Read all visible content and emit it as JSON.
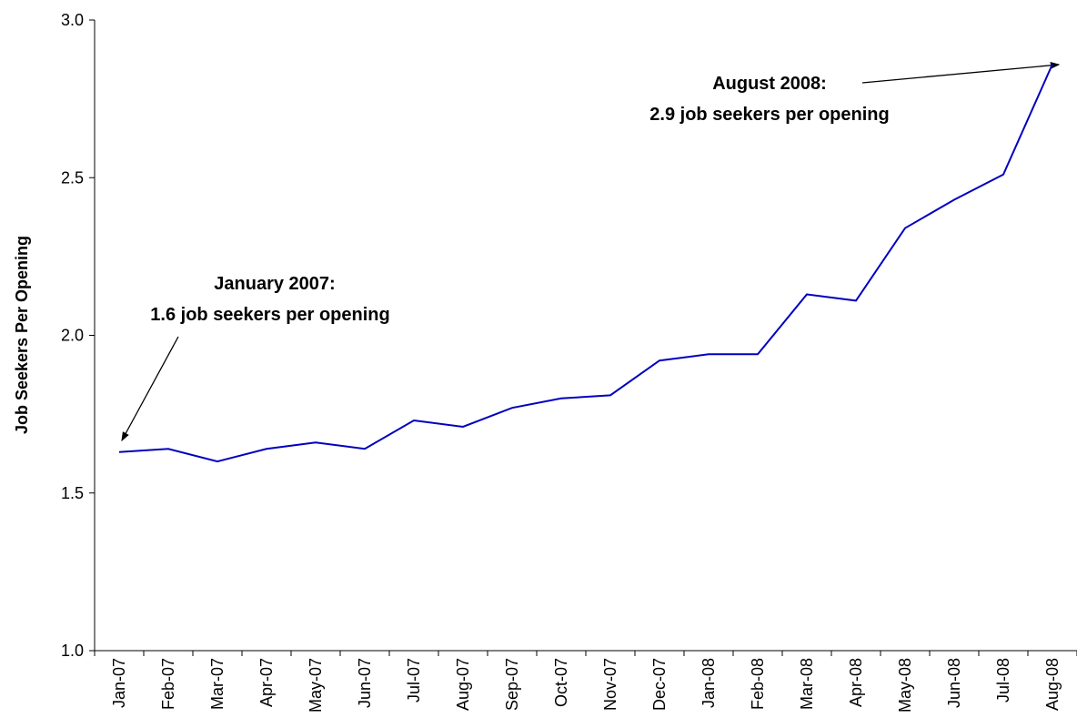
{
  "chart_data": {
    "type": "line",
    "y_label": "Job Seekers Per Opening",
    "categories": [
      "Jan-07",
      "Feb-07",
      "Mar-07",
      "Apr-07",
      "May-07",
      "Jun-07",
      "Jul-07",
      "Aug-07",
      "Sep-07",
      "Oct-07",
      "Nov-07",
      "Dec-07",
      "Jan-08",
      "Feb-08",
      "Mar-08",
      "Apr-08",
      "May-08",
      "Jun-08",
      "Jul-08",
      "Aug-08"
    ],
    "series": [
      {
        "name": "Job seekers per opening",
        "color": "#0000c0",
        "values": [
          1.63,
          1.64,
          1.6,
          1.64,
          1.66,
          1.64,
          1.73,
          1.71,
          1.77,
          1.8,
          1.81,
          1.92,
          1.94,
          1.94,
          2.13,
          2.11,
          2.34,
          2.43,
          2.51,
          2.86
        ]
      }
    ],
    "ylim": [
      1.0,
      3.0
    ],
    "yticks": [
      {
        "value": 1.0,
        "label": "1.0"
      },
      {
        "value": 1.5,
        "label": "1.5"
      },
      {
        "value": 2.0,
        "label": "2.0"
      },
      {
        "value": 2.5,
        "label": "2.5"
      },
      {
        "value": 3.0,
        "label": "3.0"
      }
    ],
    "grid": false,
    "annotations": [
      [
        "January 2007:",
        "1.6 job seekers per opening"
      ],
      [
        "August 2008:",
        "2.9 job seekers per opening"
      ]
    ]
  }
}
